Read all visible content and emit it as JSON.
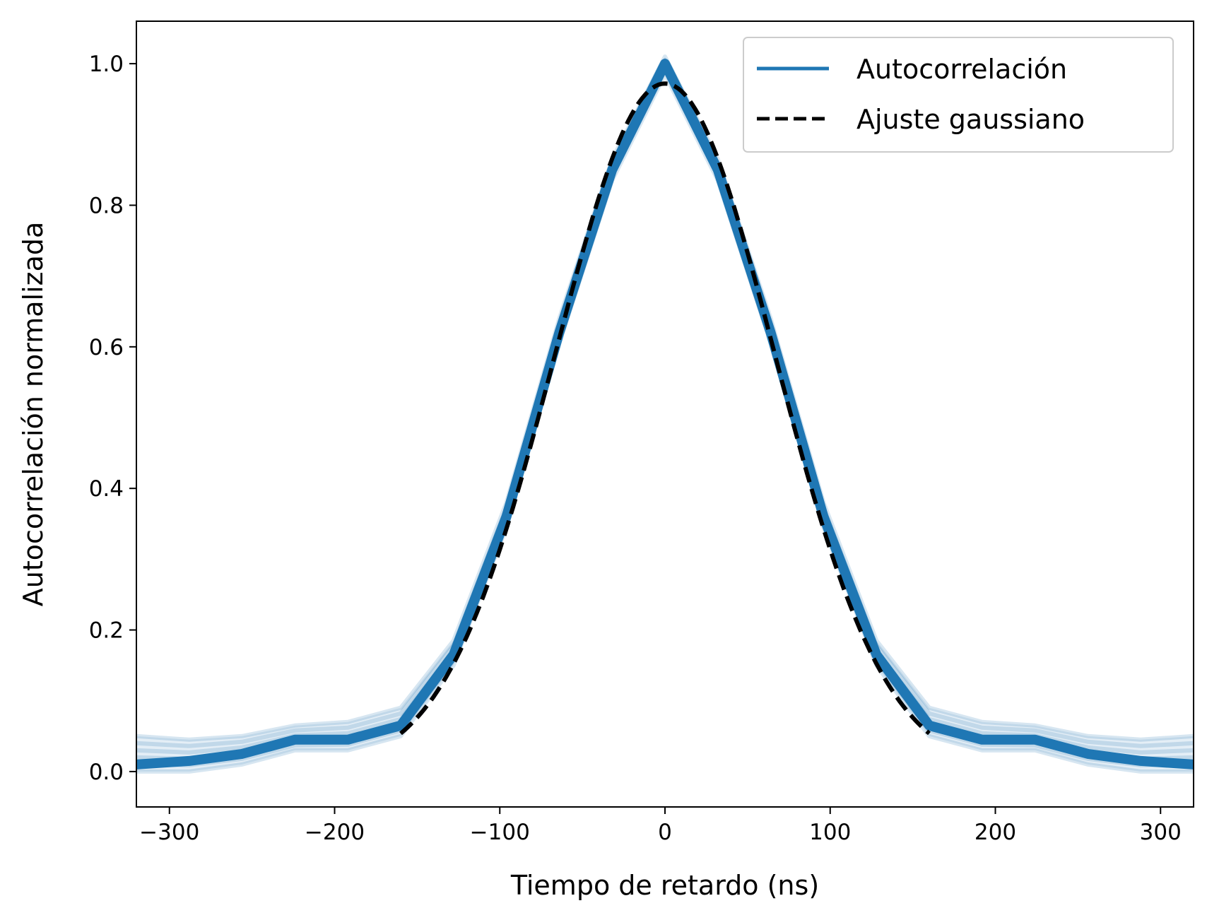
{
  "chart_data": {
    "type": "line",
    "xlabel": "Tiempo de retardo (ns)",
    "ylabel": "Autocorrelación normalizada",
    "xlim": [
      -320,
      320
    ],
    "ylim": [
      -0.05,
      1.06
    ],
    "xticks": [
      -300,
      -200,
      -100,
      0,
      100,
      200,
      300
    ],
    "xtick_labels": [
      "−300",
      "−200",
      "−100",
      "0",
      "100",
      "200",
      "300"
    ],
    "yticks": [
      0.0,
      0.2,
      0.4,
      0.6,
      0.8,
      1.0
    ],
    "ytick_labels": [
      "0.0",
      "0.2",
      "0.4",
      "0.6",
      "0.8",
      "1.0"
    ],
    "grid": false,
    "legend_position": "top-right",
    "series": [
      {
        "name": "Autocorrelación",
        "color": "#1f77b4",
        "style": "solid",
        "x": [
          -320,
          -288,
          -256,
          -224,
          -192,
          -160,
          -128,
          -96,
          -64,
          -32,
          0,
          32,
          64,
          96,
          128,
          160,
          192,
          224,
          256,
          288,
          320
        ],
        "y": [
          0.01,
          0.015,
          0.025,
          0.045,
          0.045,
          0.065,
          0.165,
          0.36,
          0.62,
          0.85,
          1.0,
          0.85,
          0.62,
          0.36,
          0.165,
          0.065,
          0.045,
          0.045,
          0.025,
          0.015,
          0.01
        ],
        "band_low": [
          0.0,
          0.0,
          0.01,
          0.03,
          0.03,
          0.05,
          0.15,
          0.345,
          0.605,
          0.835,
          0.985,
          0.835,
          0.605,
          0.345,
          0.15,
          0.05,
          0.03,
          0.03,
          0.01,
          0.0,
          0.0
        ],
        "band_high": [
          0.05,
          0.045,
          0.05,
          0.065,
          0.07,
          0.09,
          0.185,
          0.38,
          0.64,
          0.865,
          1.01,
          0.865,
          0.64,
          0.38,
          0.185,
          0.09,
          0.07,
          0.065,
          0.05,
          0.045,
          0.05
        ]
      },
      {
        "name": "Ajuste gaussiano",
        "color": "#000000",
        "style": "dashed",
        "fit": {
          "amplitude": 0.972,
          "center": 0,
          "sigma": 66.5,
          "x_range": [
            -160,
            160
          ]
        }
      }
    ]
  }
}
